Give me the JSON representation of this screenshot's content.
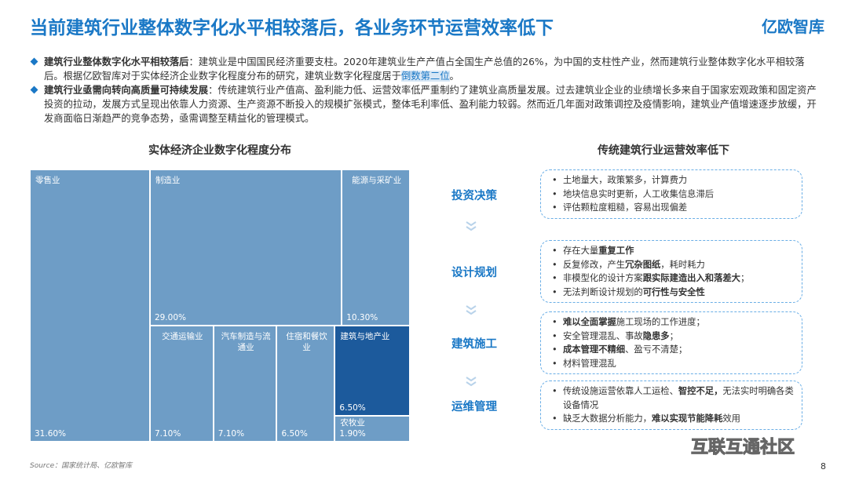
{
  "header": {
    "title": "当前建筑行业整体数字化水平相较落后，各业务环节运营效率低下",
    "logo": "亿欧智库"
  },
  "bullets": [
    [
      {
        "text": "建筑行业整体数字化水平相较落后",
        "emphasis": "bold"
      },
      {
        "text": "：建筑业是中国国民经济重要支柱。2020年建筑业生产产值占全国生产总值的26%，为中国的支柱性产业，然而建筑行业整体数字化水平相较落后。根据亿欧智库对于实体经济企业数字化程度分布的研究，建筑业数字化程度居于"
      },
      {
        "text": "倒数第二位",
        "emphasis": "highlight"
      },
      {
        "text": "。"
      }
    ],
    [
      {
        "text": "建筑行业亟需向转向高质量可持续发展",
        "emphasis": "bold"
      },
      {
        "text": "：传统建筑行业产值高、盈利能力低、运营效率低严重制约了建筑业高质量发展。过去建筑业企业的业绩增长多来自于国家宏观政策和固定资产投资的拉动，发展方式呈现出依靠人力资源、生产资源不断投入的规模扩张模式，整体毛利率低、盈利能力较弱。然而近几年面对政策调控及疫情影响，建筑业产值增速逐步放缓，开发商面临日渐趋严的竞争态势，亟需调整至精益化的管理模式。"
      }
    ]
  ],
  "chart_data": {
    "type": "treemap",
    "title": "实体经济企业数字化程度分布",
    "categories": [
      "零售业",
      "制造业",
      "能源与采矿业",
      "交通运输业",
      "汽车制造与流通业",
      "住宿和餐饮业",
      "建筑与地产业",
      "农牧业"
    ],
    "values": [
      31.6,
      29.0,
      10.3,
      7.1,
      7.1,
      6.5,
      6.5,
      1.9
    ],
    "value_labels": [
      "31.60%",
      "29.00%",
      "10.30%",
      "7.10%",
      "7.10%",
      "6.50%",
      "6.50%",
      "1.90%"
    ],
    "colors": [
      "#6e9dc6",
      "#6e9dc6",
      "#6e9dc6",
      "#6e9dc6",
      "#6e9dc6",
      "#6e9dc6",
      "#1c5a9c",
      "#6e9dc6"
    ]
  },
  "process": {
    "title": "传统建筑行业运营效率低下",
    "stages": [
      {
        "label": "投资决策",
        "items": [
          [
            {
              "text": "土地量大，政策繁多，计算费力"
            }
          ],
          [
            {
              "text": "地块信息实时更新，人工收集信息滞后"
            }
          ],
          [
            {
              "text": "评估颗粒度粗糙，容易出现偏差"
            }
          ]
        ]
      },
      {
        "label": "设计规划",
        "items": [
          [
            {
              "text": "存在大量"
            },
            {
              "text": "重复工作",
              "emphasis": "bold"
            }
          ],
          [
            {
              "text": "反复修改，产生"
            },
            {
              "text": "冗杂图纸",
              "emphasis": "bold"
            },
            {
              "text": "，耗时耗力"
            }
          ],
          [
            {
              "text": "非模型化的设计方案"
            },
            {
              "text": "跟实际建造出入和落差大",
              "emphasis": "bold"
            },
            {
              "text": "；"
            }
          ],
          [
            {
              "text": "无法判断设计规划的"
            },
            {
              "text": "可行性与安全性",
              "emphasis": "bold"
            }
          ]
        ]
      },
      {
        "label": "建筑施工",
        "items": [
          [
            {
              "text": "难以全面掌握",
              "emphasis": "bold"
            },
            {
              "text": "施工现场的工作进度；"
            }
          ],
          [
            {
              "text": "安全管理混乱、事故"
            },
            {
              "text": "隐患多",
              "emphasis": "bold"
            },
            {
              "text": "；"
            }
          ],
          [
            {
              "text": "成本管理不精细",
              "emphasis": "bold"
            },
            {
              "text": "、盈亏不清楚；"
            }
          ],
          [
            {
              "text": "材料管理混乱"
            }
          ]
        ]
      },
      {
        "label": "运维管理",
        "items": [
          [
            {
              "text": "传统设施运营依靠人工运检、"
            },
            {
              "text": "智控不足，",
              "emphasis": "bold"
            },
            {
              "text": "无法实时明确各类设备情况"
            }
          ],
          [
            {
              "text": "缺乏大数据分析能力，"
            },
            {
              "text": "难以实现节能降耗",
              "emphasis": "bold"
            },
            {
              "text": "效用"
            }
          ]
        ]
      }
    ]
  },
  "footer": {
    "source": "Source：国家统计局、亿欧智库",
    "page": 8,
    "watermark": "互联互通社区"
  }
}
